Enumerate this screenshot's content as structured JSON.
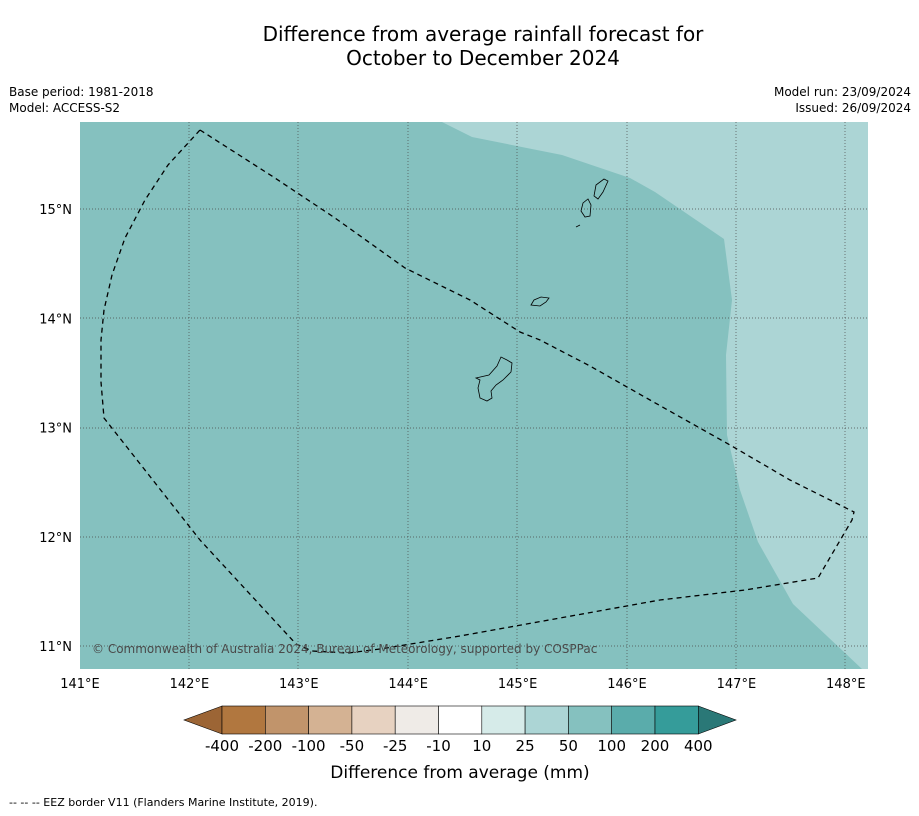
{
  "title": {
    "line1": "Difference from average rainfall forecast for",
    "line2": "October to December 2024"
  },
  "meta": {
    "base_period": "Base period: 1981-2018",
    "model": "Model: ACCESS-S2",
    "model_run": "Model run: 23/09/2024",
    "issued": "Issued: 26/09/2024"
  },
  "map": {
    "lon_labels": [
      "141°E",
      "142°E",
      "143°E",
      "144°E",
      "145°E",
      "146°E",
      "147°E",
      "148°E"
    ],
    "lat_labels": [
      "15°N",
      "14°N",
      "13°N",
      "12°N",
      "11°N"
    ],
    "copyright": "© Commonwealth of Australia 2024, Bureau of Meteorology, supported by COSPPac",
    "region_colors": {
      "band_50_100": "#85c1bf",
      "band_25_50": "#acd5d5"
    }
  },
  "colorbar": {
    "labels": [
      "-400",
      "-200",
      "-100",
      "-50",
      "-25",
      "-10",
      "10",
      "25",
      "50",
      "100",
      "200",
      "400"
    ],
    "colors": [
      "#9c6535",
      "#b1773f",
      "#c1946b",
      "#d4b293",
      "#e7d2c1",
      "#efebe7",
      "#ffffff",
      "#d6ebe9",
      "#acd5d5",
      "#85c1bf",
      "#5aacab",
      "#359c9a",
      "#2a7877"
    ],
    "title": "Difference from average (mm)"
  },
  "footnote": "--  --  -- EEZ border V11 (Flanders Marine Institute, 2019)."
}
